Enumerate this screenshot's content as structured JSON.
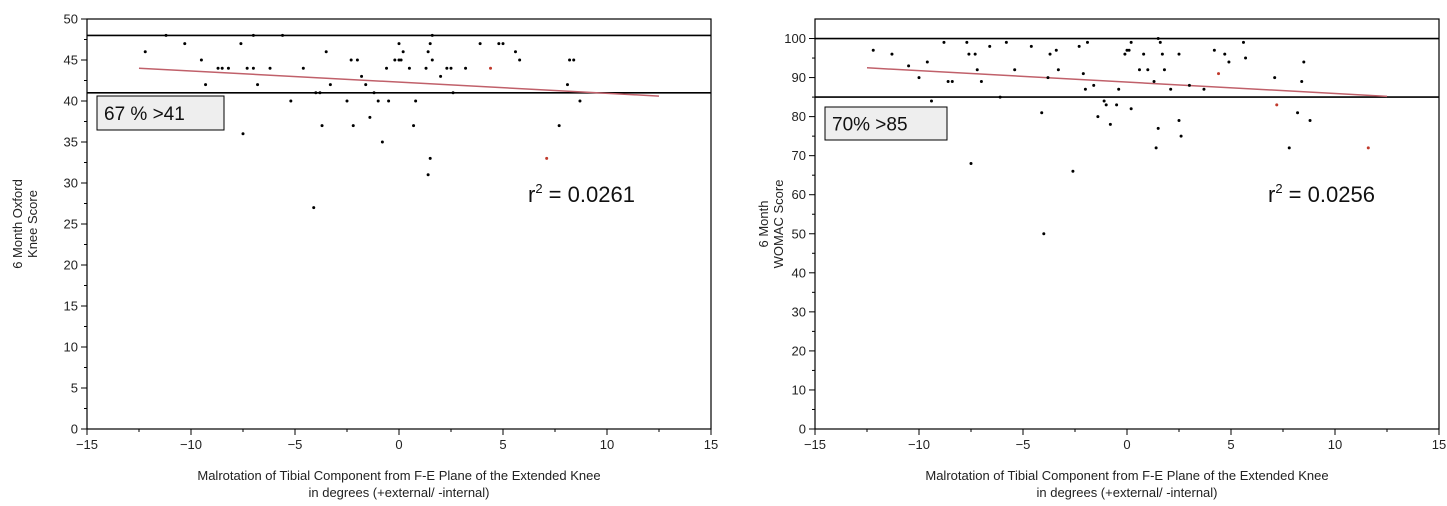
{
  "chart_data": [
    {
      "type": "scatter",
      "xlabel": [
        "Malrotation of Tibial Component from F-E Plane of the Extended Knee",
        "in degrees (+external/ -internal)"
      ],
      "ylabel": [
        "6 Month Oxford",
        "Knee Score"
      ],
      "xlim": [
        -15,
        15
      ],
      "ylim": [
        0,
        50
      ],
      "xticks": [
        -15,
        -10,
        -5,
        0,
        5,
        10,
        15
      ],
      "yticks": [
        0,
        5,
        10,
        15,
        20,
        25,
        30,
        35,
        40,
        45,
        50
      ],
      "grid": false,
      "reference_lines": [
        48,
        41
      ],
      "threshold_box_text": "67 % >41",
      "r2_label": "0.0261",
      "regression": {
        "x": [
          -12.5,
          12.5
        ],
        "y": [
          44,
          40.6
        ]
      },
      "colors": {
        "points": "#000000",
        "highlight": "#c0392b",
        "regression": "#c0606a"
      },
      "series": [
        {
          "points": [
            [
              -12.2,
              46
            ],
            [
              -11.2,
              48
            ],
            [
              -10.3,
              47
            ],
            [
              -9.5,
              45
            ],
            [
              -9.3,
              42
            ],
            [
              -8.7,
              44
            ],
            [
              -8.5,
              44
            ],
            [
              -8.2,
              44
            ],
            [
              -7.6,
              47
            ],
            [
              -7.3,
              44
            ],
            [
              -7.0,
              48
            ],
            [
              -7.0,
              44
            ],
            [
              -6.8,
              42
            ],
            [
              -6.2,
              44
            ],
            [
              -5.6,
              48
            ],
            [
              -5.2,
              40
            ],
            [
              -4.6,
              44
            ],
            [
              -4.0,
              41
            ],
            [
              -3.8,
              41
            ],
            [
              -3.7,
              37
            ],
            [
              -3.5,
              46
            ],
            [
              -3.3,
              42
            ],
            [
              -2.5,
              40
            ],
            [
              -2.3,
              45
            ],
            [
              -2.2,
              37
            ],
            [
              -2.0,
              45
            ],
            [
              -1.8,
              43
            ],
            [
              -1.6,
              42
            ],
            [
              -1.4,
              38
            ],
            [
              -1.2,
              41
            ],
            [
              -1.0,
              40
            ],
            [
              -0.8,
              35
            ],
            [
              -0.6,
              44
            ],
            [
              -0.5,
              40
            ],
            [
              -0.2,
              45
            ],
            [
              0,
              47
            ],
            [
              0,
              45
            ],
            [
              0.1,
              45
            ],
            [
              0.2,
              46
            ],
            [
              0.5,
              44
            ],
            [
              0.7,
              37
            ],
            [
              0.8,
              40
            ],
            [
              1.3,
              44
            ],
            [
              1.4,
              46
            ],
            [
              1.5,
              47
            ],
            [
              1.6,
              48
            ],
            [
              1.6,
              45
            ],
            [
              1.5,
              33
            ],
            [
              1.4,
              31
            ],
            [
              2.0,
              43
            ],
            [
              2.3,
              44
            ],
            [
              2.5,
              44
            ],
            [
              2.6,
              41
            ],
            [
              3.2,
              44
            ],
            [
              3.9,
              47
            ],
            [
              4.8,
              47
            ],
            [
              5.0,
              47
            ],
            [
              5.6,
              46
            ],
            [
              5.8,
              45
            ],
            [
              8.1,
              42
            ],
            [
              8.2,
              45
            ],
            [
              8.4,
              45
            ],
            [
              8.7,
              40
            ],
            [
              7.7,
              37
            ],
            [
              -7.5,
              36
            ],
            [
              -4.1,
              27
            ]
          ],
          "highlight_points": [
            [
              4.4,
              44
            ],
            [
              7.1,
              33
            ]
          ]
        }
      ]
    },
    {
      "type": "scatter",
      "xlabel": [
        "Malrotation of Tibial Component from F-E Plane of the Extended Knee",
        "in degrees (+external/ -internal)"
      ],
      "ylabel": [
        "6 Month",
        "WOMAC Score"
      ],
      "xlim": [
        -15,
        15
      ],
      "ylim": [
        0,
        105
      ],
      "xticks": [
        -15,
        -10,
        -5,
        0,
        5,
        10,
        15
      ],
      "yticks": [
        0,
        10,
        20,
        30,
        40,
        50,
        60,
        70,
        80,
        90,
        100
      ],
      "grid": false,
      "reference_lines": [
        100,
        85
      ],
      "threshold_box_text": "70% >85",
      "r2_label": "0.0256",
      "regression": {
        "x": [
          -12.5,
          12.5
        ],
        "y": [
          92.5,
          85.2
        ]
      },
      "colors": {
        "points": "#000000",
        "highlight": "#c0392b",
        "regression": "#c0606a"
      },
      "series": [
        {
          "points": [
            [
              -12.2,
              97
            ],
            [
              -11.3,
              96
            ],
            [
              -10.5,
              93
            ],
            [
              -10.0,
              90
            ],
            [
              -9.6,
              94
            ],
            [
              -9.4,
              84
            ],
            [
              -8.8,
              99
            ],
            [
              -8.6,
              89
            ],
            [
              -8.4,
              89
            ],
            [
              -7.7,
              99
            ],
            [
              -7.6,
              96
            ],
            [
              -7.3,
              96
            ],
            [
              -7.2,
              92
            ],
            [
              -7.0,
              89
            ],
            [
              -6.6,
              98
            ],
            [
              -6.1,
              85
            ],
            [
              -5.8,
              99
            ],
            [
              -5.4,
              92
            ],
            [
              -4.6,
              98
            ],
            [
              -4.1,
              81
            ],
            [
              -3.8,
              90
            ],
            [
              -3.7,
              96
            ],
            [
              -3.4,
              97
            ],
            [
              -3.3,
              92
            ],
            [
              -2.6,
              66
            ],
            [
              -2.3,
              98
            ],
            [
              -2.1,
              91
            ],
            [
              -2.0,
              87
            ],
            [
              -1.9,
              99
            ],
            [
              -1.6,
              88
            ],
            [
              -1.4,
              80
            ],
            [
              -1.1,
              84
            ],
            [
              -1.0,
              83
            ],
            [
              -0.8,
              78
            ],
            [
              -0.5,
              83
            ],
            [
              -0.4,
              87
            ],
            [
              -0.1,
              96
            ],
            [
              0,
              97
            ],
            [
              0.1,
              97
            ],
            [
              0.2,
              82
            ],
            [
              0.2,
              99
            ],
            [
              0.6,
              92
            ],
            [
              0.8,
              96
            ],
            [
              1.0,
              92
            ],
            [
              1.3,
              89
            ],
            [
              1.4,
              72
            ],
            [
              1.5,
              100
            ],
            [
              1.6,
              99
            ],
            [
              1.5,
              77
            ],
            [
              1.7,
              96
            ],
            [
              1.8,
              92
            ],
            [
              2.1,
              87
            ],
            [
              2.5,
              96
            ],
            [
              2.5,
              79
            ],
            [
              2.6,
              75
            ],
            [
              3.0,
              88
            ],
            [
              3.7,
              87
            ],
            [
              4.2,
              97
            ],
            [
              4.7,
              96
            ],
            [
              4.9,
              94
            ],
            [
              5.6,
              99
            ],
            [
              5.7,
              95
            ],
            [
              7.1,
              90
            ],
            [
              7.8,
              72
            ],
            [
              8.2,
              81
            ],
            [
              8.4,
              89
            ],
            [
              8.5,
              94
            ],
            [
              8.8,
              79
            ],
            [
              -7.5,
              68
            ],
            [
              -4.0,
              50
            ]
          ],
          "highlight_points": [
            [
              4.4,
              91
            ],
            [
              7.2,
              83
            ],
            [
              11.6,
              72
            ]
          ]
        }
      ]
    }
  ]
}
